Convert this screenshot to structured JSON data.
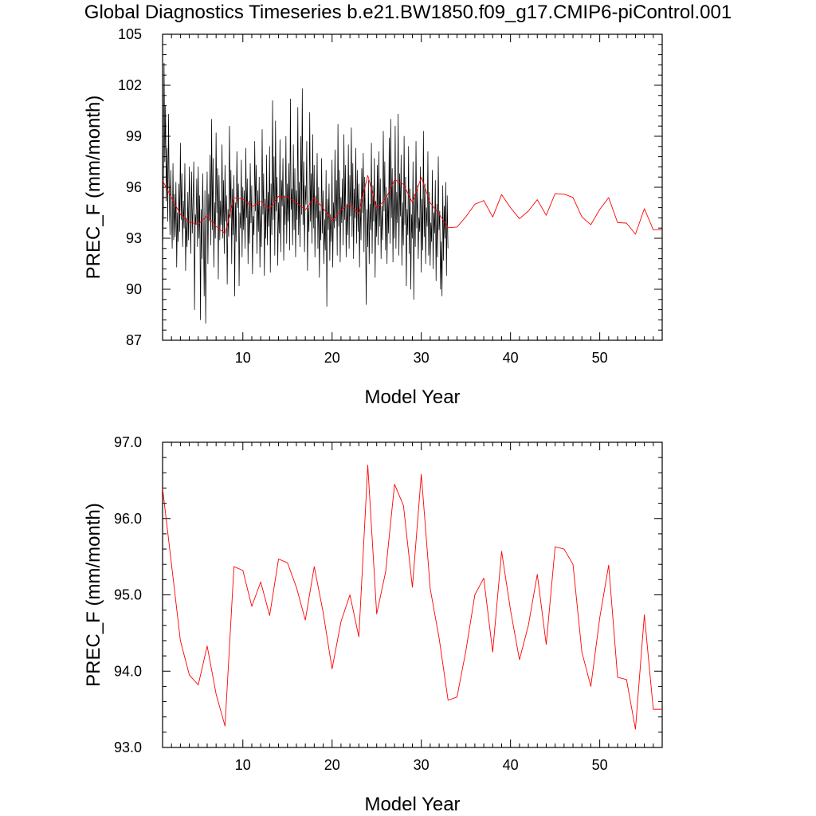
{
  "page": {
    "title": "Global Diagnostics Timeseries b.e21.BW1850.f09_g17.CMIP6-piControl.001"
  },
  "colors": {
    "monthly_line": "#000000",
    "annual_line": "#ff0000",
    "axis": "#000000",
    "background": "#ffffff"
  },
  "chart_data": [
    {
      "type": "line",
      "title": "",
      "xlabel": "Model Year",
      "ylabel": "PREC_F (mm/month)",
      "xlim": [
        1,
        57
      ],
      "ylim": [
        87,
        105
      ],
      "xticks": [
        10,
        20,
        30,
        40,
        50
      ],
      "xtick_labels": [
        "10",
        "20",
        "30",
        "40",
        "50"
      ],
      "yticks": [
        87,
        90,
        93,
        96,
        99,
        102,
        105
      ],
      "ytick_labels": [
        "87",
        "90",
        "93",
        "96",
        "99",
        "102",
        "105"
      ],
      "grid": false,
      "series": [
        {
          "name": "monthly",
          "color": "#000000",
          "x_start": 1.0,
          "x_step": 0.0833,
          "values": [
            92.2,
            94.5,
            103.3,
            97.5,
            100.8,
            95.2,
            98.3,
            94.0,
            100.3,
            95.7,
            93.2,
            97.0,
            94.4,
            92.4,
            97.4,
            92.9,
            95.6,
            93.1,
            96.3,
            91.3,
            94.5,
            92.8,
            96.2,
            93.4,
            98.6,
            94.1,
            96.8,
            92.5,
            95.2,
            93.6,
            97.4,
            91.1,
            94.2,
            92.5,
            95.7,
            92.9,
            97.2,
            94.4,
            92.1,
            96.9,
            93.3,
            95.1,
            97.5,
            88.8,
            94.4,
            93.8,
            96.5,
            92.5,
            97.2,
            93.0,
            95.5,
            88.2,
            94.7,
            91.8,
            96.8,
            93.4,
            89.6,
            95.8,
            88.0,
            93.3,
            96.9,
            91.5,
            95.6,
            94.0,
            97.9,
            92.6,
            100.0,
            93.5,
            97.7,
            91.3,
            95.1,
            93.0,
            99.2,
            94.5,
            97.1,
            90.6,
            96.7,
            92.9,
            95.2,
            93.8,
            98.5,
            93.0,
            96.4,
            92.1,
            97.3,
            94.0,
            95.5,
            90.3,
            94.7,
            93.1,
            99.6,
            94.2,
            97.0,
            91.5,
            95.9,
            93.2,
            96.7,
            89.6,
            95.1,
            92.8,
            98.1,
            94.8,
            96.2,
            90.2,
            94.5,
            93.6,
            97.6,
            91.9,
            96.0,
            93.5,
            95.8,
            92.4,
            98.3,
            94.2,
            96.5,
            91.5,
            95.2,
            92.7,
            97.4,
            93.9,
            96.1,
            90.9,
            94.3,
            93.2,
            98.7,
            94.6,
            97.3,
            92.1,
            95.8,
            93.4,
            96.6,
            91.3,
            94.9,
            92.5,
            99.4,
            94.4,
            96.8,
            90.8,
            95.3,
            93.0,
            97.9,
            92.6,
            95.7,
            93.7,
            98.4,
            91.0,
            96.2,
            93.2,
            101.1,
            94.1,
            97.8,
            92.0,
            99.9,
            94.6,
            96.6,
            91.4,
            95.1,
            93.3,
            98.8,
            92.2,
            96.4,
            94.9,
            97.7,
            91.7,
            95.5,
            93.8,
            99.0,
            92.7,
            96.2,
            94.0,
            97.4,
            92.3,
            101.2,
            94.7,
            95.9,
            92.6,
            98.5,
            93.5,
            97.1,
            91.9,
            95.8,
            94.1,
            100.7,
            93.2,
            96.3,
            92.5,
            99.0,
            94.4,
            101.8,
            93.8,
            97.5,
            92.2,
            96.1,
            95.0,
            98.7,
            91.1,
            94.8,
            93.4,
            100.4,
            94.0,
            96.8,
            92.7,
            99.1,
            93.6,
            97.3,
            91.9,
            95.5,
            94.2,
            98.0,
            92.4,
            96.0,
            90.7,
            94.6,
            92.9,
            97.7,
            93.3,
            95.8,
            91.5,
            94.1,
            92.3,
            97.0,
            89.0,
            95.3,
            93.5,
            96.2,
            91.7,
            94.4,
            92.8,
            97.6,
            91.3,
            95.1,
            93.6,
            98.2,
            94.0,
            96.4,
            92.0,
            99.7,
            93.7,
            97.0,
            91.6,
            95.4,
            93.9,
            96.5,
            92.6,
            99.1,
            94.1,
            97.3,
            91.9,
            95.0,
            93.2,
            98.5,
            92.4,
            96.7,
            94.3,
            99.5,
            93.1,
            97.4,
            91.8,
            95.9,
            94.2,
            98.3,
            92.7,
            97.0,
            93.4,
            96.2,
            91.3,
            95.3,
            92.9,
            97.1,
            94.5,
            98.0,
            92.2,
            96.6,
            93.8,
            89.1,
            94.7,
            92.5,
            96.4,
            91.5,
            95.0,
            93.5,
            98.6,
            92.1,
            96.1,
            94.0,
            97.7,
            90.7,
            95.2,
            93.1,
            97.3,
            92.6,
            98.1,
            93.7,
            96.5,
            91.8,
            94.9,
            92.9,
            99.3,
            94.6,
            97.5,
            92.3,
            96.0,
            91.5,
            95.4,
            93.3,
            98.9,
            92.7,
            100.0,
            94.2,
            97.1,
            91.6,
            96.3,
            93.0,
            99.6,
            92.4,
            95.7,
            93.9,
            100.3,
            92.0,
            96.8,
            94.3,
            97.9,
            91.4,
            95.1,
            92.6,
            99.0,
            93.8,
            96.6,
            90.2,
            94.7,
            93.2,
            98.4,
            92.1,
            95.9,
            90.0,
            94.4,
            93.0,
            97.5,
            89.4,
            95.6,
            92.5,
            98.7,
            93.6,
            96.1,
            91.8,
            94.2,
            93.4,
            97.2,
            91.0,
            95.3,
            92.3,
            99.3,
            93.1,
            96.2,
            91.5,
            94.8,
            93.7,
            98.1,
            92.0,
            95.7,
            91.4,
            93.9,
            92.8,
            97.0,
            91.2,
            94.5,
            93.3,
            96.4,
            90.5,
            95.0,
            91.9,
            97.8,
            93.5,
            94.6,
            90.0,
            92.8,
            89.6,
            96.1,
            91.7,
            94.9,
            93.0,
            96.3,
            90.8,
            95.5,
            92.4
          ]
        },
        {
          "name": "annual",
          "color": "#ff0000",
          "x": [
            1,
            2,
            3,
            4,
            5,
            6,
            7,
            8,
            9,
            10,
            11,
            12,
            13,
            14,
            15,
            16,
            17,
            18,
            19,
            20,
            21,
            22,
            23,
            24,
            25,
            26,
            27,
            28,
            29,
            30,
            31,
            32,
            33,
            34,
            35,
            36,
            37,
            38,
            39,
            40,
            41,
            42,
            43,
            44,
            45,
            46,
            47,
            48,
            49,
            50,
            51,
            52,
            53,
            54,
            55,
            56,
            57
          ],
          "values": [
            96.4,
            95.4,
            94.4,
            93.95,
            93.82,
            94.33,
            93.7,
            93.28,
            95.37,
            95.32,
            94.85,
            95.17,
            94.73,
            95.47,
            95.42,
            95.1,
            94.67,
            95.37,
            94.77,
            94.03,
            94.65,
            95.0,
            94.45,
            96.7,
            94.75,
            95.3,
            96.45,
            96.17,
            95.1,
            96.58,
            95.08,
            94.43,
            93.62,
            93.66,
            94.27,
            95.0,
            95.22,
            94.25,
            95.57,
            94.8,
            94.15,
            94.6,
            95.27,
            94.35,
            95.63,
            95.6,
            95.4,
            94.25,
            93.8,
            94.7,
            95.39,
            93.92,
            93.89,
            93.24,
            94.74,
            93.5,
            93.5
          ]
        }
      ]
    },
    {
      "type": "line",
      "title": "",
      "xlabel": "Model Year",
      "ylabel": "PREC_F (mm/month)",
      "xlim": [
        1,
        57
      ],
      "ylim": [
        93.0,
        97.0
      ],
      "xticks": [
        10,
        20,
        30,
        40,
        50
      ],
      "xtick_labels": [
        "10",
        "20",
        "30",
        "40",
        "50"
      ],
      "yticks": [
        93.0,
        94.0,
        95.0,
        96.0,
        97.0
      ],
      "ytick_labels": [
        "93.0",
        "94.0",
        "95.0",
        "96.0",
        "97.0"
      ],
      "grid": false,
      "series": [
        {
          "name": "annual",
          "color": "#ff0000",
          "x": [
            1,
            2,
            3,
            4,
            5,
            6,
            7,
            8,
            9,
            10,
            11,
            12,
            13,
            14,
            15,
            16,
            17,
            18,
            19,
            20,
            21,
            22,
            23,
            24,
            25,
            26,
            27,
            28,
            29,
            30,
            31,
            32,
            33,
            34,
            35,
            36,
            37,
            38,
            39,
            40,
            41,
            42,
            43,
            44,
            45,
            46,
            47,
            48,
            49,
            50,
            51,
            52,
            53,
            54,
            55,
            56,
            57
          ],
          "values": [
            96.4,
            95.4,
            94.4,
            93.95,
            93.82,
            94.33,
            93.7,
            93.28,
            95.37,
            95.32,
            94.85,
            95.17,
            94.73,
            95.47,
            95.42,
            95.1,
            94.67,
            95.37,
            94.77,
            94.03,
            94.65,
            95.0,
            94.45,
            96.7,
            94.75,
            95.3,
            96.45,
            96.17,
            95.1,
            96.58,
            95.08,
            94.43,
            93.62,
            93.66,
            94.27,
            95.0,
            95.22,
            94.25,
            95.57,
            94.8,
            94.15,
            94.6,
            95.27,
            94.35,
            95.63,
            95.6,
            95.4,
            94.25,
            93.8,
            94.7,
            95.39,
            93.92,
            93.89,
            93.24,
            94.74,
            93.5,
            93.5
          ]
        }
      ]
    }
  ]
}
